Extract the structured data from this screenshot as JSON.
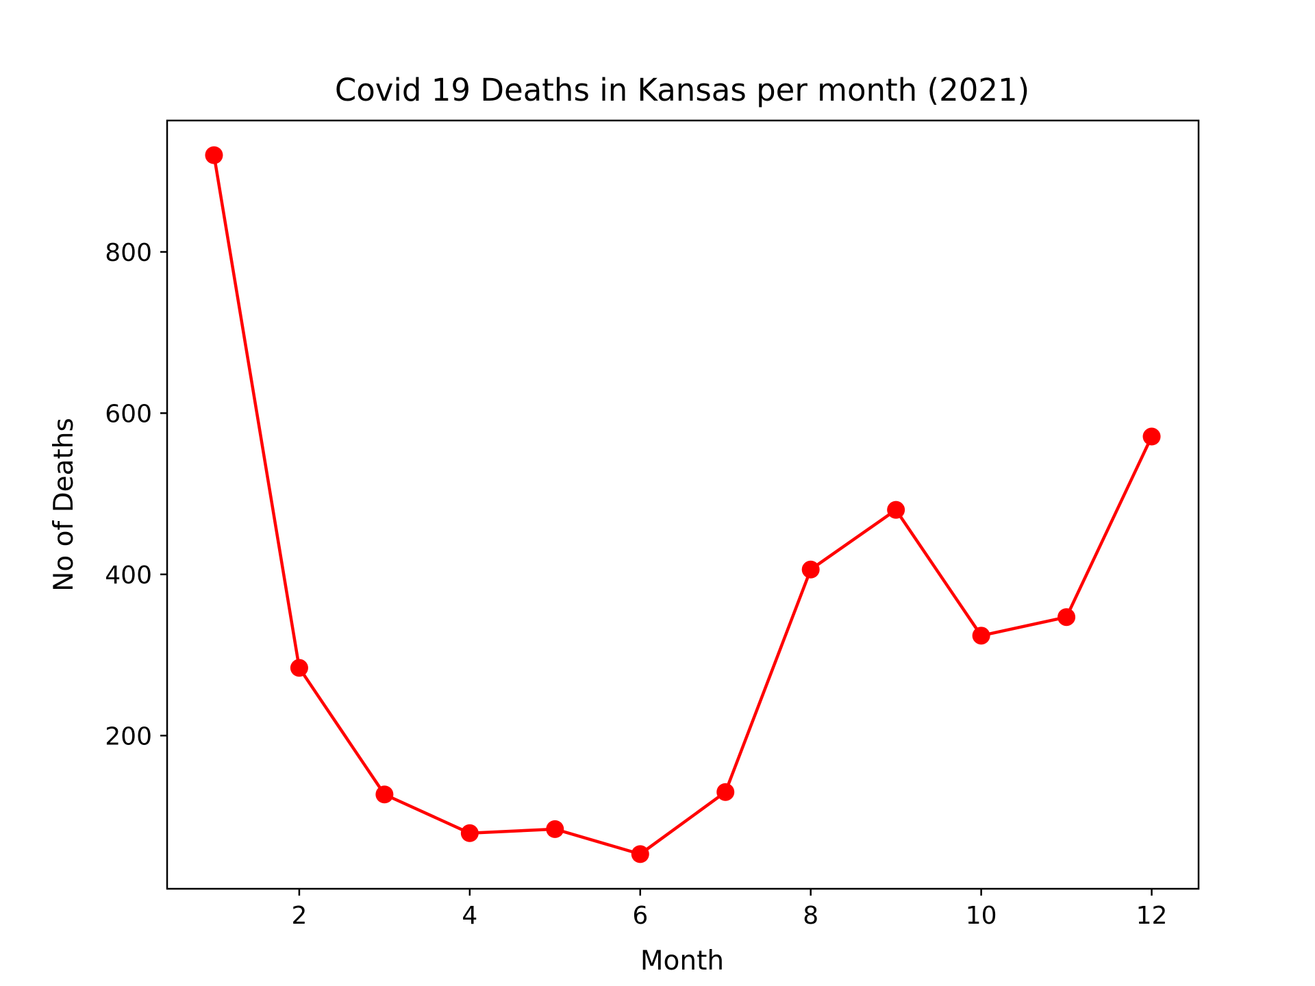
{
  "chart_data": {
    "type": "line",
    "title": "Covid 19 Deaths in Kansas per month (2021)",
    "xlabel": "Month",
    "ylabel": "No of Deaths",
    "x": [
      1,
      2,
      3,
      4,
      5,
      6,
      7,
      8,
      9,
      10,
      11,
      12
    ],
    "series": [
      {
        "values": [
          920,
          284,
          127,
          79,
          84,
          53,
          130,
          406,
          480,
          324,
          347,
          571
        ]
      }
    ],
    "xlim": [
      0.45,
      12.55
    ],
    "ylim": [
      10,
      963
    ],
    "xticks": [
      2,
      4,
      6,
      8,
      10,
      12
    ],
    "yticks": [
      200,
      400,
      600,
      800
    ],
    "grid": false,
    "legend": "none",
    "color": "#ff0000",
    "marker": "circle"
  }
}
